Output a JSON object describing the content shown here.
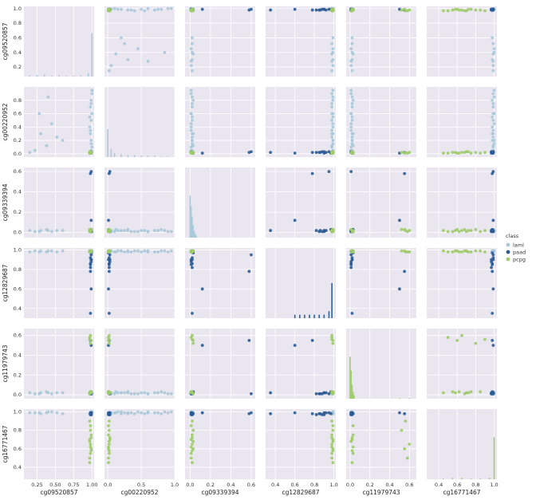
{
  "chart_data": {
    "type": "scatter",
    "subtype": "pairplot",
    "variables": [
      "cg09520857",
      "cg00220952",
      "cg09339394",
      "cg12829687",
      "cg11979743",
      "cg16771467"
    ],
    "legend": {
      "title": "class",
      "placement": "right",
      "entries": [
        {
          "name": "laml",
          "color": "#a8c8d8"
        },
        {
          "name": "paad",
          "color": "#2b5b94"
        },
        {
          "name": "pcpg",
          "color": "#9fca6a"
        }
      ]
    },
    "axes_ranges": {
      "cg09520857": [
        0.07,
        1.03
      ],
      "cg00220952": [
        -0.05,
        1.0
      ],
      "cg09339394": [
        -0.05,
        0.64
      ],
      "cg12829687": [
        0.3,
        1.02
      ],
      "cg11979743": [
        -0.04,
        0.67
      ],
      "cg16771467": [
        0.27,
        1.03
      ]
    },
    "x_ticks": {
      "cg09520857": [
        "0.25",
        "0.50",
        "0.75",
        "1.00"
      ],
      "cg00220952": [
        "0.0",
        "0.5",
        "1.0"
      ],
      "cg09339394": [
        "0.0",
        "0.2",
        "0.4",
        "0.6"
      ],
      "cg12829687": [
        "0.4",
        "0.6",
        "0.8",
        "1.0"
      ],
      "cg11979743": [
        "0.0",
        "0.2",
        "0.4",
        "0.6"
      ],
      "cg16771467": [
        "0.4",
        "0.6",
        "0.8",
        "1.0"
      ]
    },
    "y_ticks": {
      "cg09520857": [
        "0.2",
        "0.4",
        "0.6",
        "0.8",
        "1.0"
      ],
      "cg00220952": [
        "0.0",
        "0.2",
        "0.4",
        "0.6",
        "0.8"
      ],
      "cg09339394": [
        "0.0",
        "0.2",
        "0.4",
        "0.6"
      ],
      "cg12829687": [
        "0.4",
        "0.6",
        "0.8",
        "1.0"
      ],
      "cg11979743": [
        "0.0",
        "0.2",
        "0.4",
        "0.6"
      ],
      "cg16771467": [
        "0.4",
        "0.6",
        "0.8",
        "1.0"
      ]
    },
    "groups": {
      "laml": {
        "cg09520857": [
          0.15,
          0.22,
          0.3,
          0.38,
          0.45,
          0.52,
          0.6,
          0.28,
          0.4,
          0.98,
          0.99,
          1.0,
          0.99,
          0.98,
          0.97,
          0.99,
          1.0,
          0.98,
          0.99,
          1.0,
          0.99,
          0.98,
          0.97,
          0.99,
          1.0
        ],
        "cg00220952": [
          0.02,
          0.05,
          0.3,
          0.12,
          0.45,
          0.25,
          0.2,
          0.6,
          0.85,
          0.02,
          0.05,
          0.1,
          0.2,
          0.3,
          0.4,
          0.5,
          0.6,
          0.7,
          0.8,
          0.9,
          0.15,
          0.35,
          0.55,
          0.75,
          0.95
        ],
        "cg09339394": [
          0.02,
          0.01,
          0.02,
          0.03,
          0.01,
          0.02,
          0.02,
          0.01,
          0.02,
          0.01,
          0.02,
          0.01,
          0.02,
          0.03,
          0.01,
          0.02,
          0.01,
          0.02,
          0.03,
          0.01,
          0.02,
          0.01,
          0.02,
          0.02,
          0.01
        ],
        "cg12829687": [
          0.98,
          0.99,
          0.99,
          0.98,
          0.99,
          0.98,
          0.99,
          0.98,
          0.99,
          0.98,
          0.99,
          0.98,
          0.99,
          0.98,
          0.99,
          0.98,
          0.99,
          0.98,
          0.99,
          0.98,
          0.99,
          0.98,
          0.99,
          0.98,
          0.99
        ],
        "cg11979743": [
          0.02,
          0.01,
          0.02,
          0.03,
          0.01,
          0.02,
          0.02,
          0.01,
          0.02,
          0.01,
          0.02,
          0.01,
          0.02,
          0.03,
          0.01,
          0.02,
          0.01,
          0.02,
          0.03,
          0.01,
          0.02,
          0.01,
          0.02,
          0.02,
          0.01
        ],
        "cg16771467": [
          0.99,
          0.99,
          0.98,
          0.99,
          1.0,
          0.99,
          0.98,
          0.99,
          1.0,
          0.99,
          0.98,
          0.99,
          1.0,
          0.99,
          0.98,
          0.99,
          1.0,
          0.99,
          0.98,
          0.99,
          1.0,
          0.99,
          0.98,
          0.99,
          1.0
        ]
      },
      "paad": {
        "cg09520857": [
          0.98,
          0.99,
          0.99,
          0.98,
          0.99,
          0.98,
          0.99,
          0.98,
          0.99,
          0.98,
          0.99,
          0.98
        ],
        "cg00220952": [
          0.02,
          0.01,
          0.03,
          0.02,
          0.01,
          0.02,
          0.03,
          0.02,
          0.01,
          0.02,
          0.03,
          0.02
        ],
        "cg09339394": [
          0.01,
          0.02,
          0.6,
          0.58,
          0.12,
          0.02,
          0.01,
          0.02,
          0.03,
          0.02,
          0.01,
          0.02
        ],
        "cg12829687": [
          0.85,
          0.9,
          0.95,
          0.78,
          0.6,
          0.35,
          0.88,
          0.92,
          0.97,
          0.82,
          0.9,
          0.86
        ],
        "cg11979743": [
          0.01,
          0.02,
          0.01,
          0.55,
          0.5,
          0.02,
          0.01,
          0.02,
          0.03,
          0.01,
          0.02,
          0.01
        ],
        "cg16771467": [
          0.98,
          0.97,
          0.99,
          0.98,
          0.99,
          0.98,
          0.97,
          0.99,
          0.98,
          0.97,
          0.99,
          0.98
        ]
      },
      "pcpg": {
        "cg09520857": [
          0.97,
          0.98,
          0.99,
          0.98,
          0.97,
          0.99,
          0.98,
          0.97,
          0.99,
          0.98,
          0.97,
          0.99,
          0.98,
          0.97
        ],
        "cg00220952": [
          0.01,
          0.02,
          0.01,
          0.02,
          0.03,
          0.01,
          0.02,
          0.01,
          0.02,
          0.01,
          0.02,
          0.03,
          0.01,
          0.02
        ],
        "cg09339394": [
          0.02,
          0.01,
          0.03,
          0.02,
          0.01,
          0.02,
          0.03,
          0.01,
          0.02,
          0.01,
          0.03,
          0.02,
          0.01,
          0.02
        ],
        "cg12829687": [
          0.99,
          0.98,
          0.99,
          0.98,
          0.99,
          0.98,
          0.99,
          0.98,
          0.99,
          0.98,
          0.99,
          0.98,
          0.99,
          0.98
        ],
        "cg11979743": [
          0.02,
          0.03,
          0.55,
          0.6,
          0.02,
          0.03,
          0.52,
          0.58,
          0.02,
          0.03,
          0.01,
          0.02,
          0.03,
          0.56
        ],
        "cg16771467": [
          0.45,
          0.55,
          0.6,
          0.65,
          0.7,
          0.75,
          0.8,
          0.5,
          0.58,
          0.62,
          0.68,
          0.72,
          0.85,
          0.9
        ]
      }
    },
    "diagonal": {
      "cg09520857": {
        "bins": [
          0.15,
          0.25,
          0.35,
          0.45,
          0.55,
          0.65,
          0.75,
          0.85,
          0.95,
          1.0
        ],
        "heights": [
          0.02,
          0.02,
          0.03,
          0.01,
          0.02,
          0.01,
          0.01,
          0.02,
          0.05,
          0.62
        ]
      },
      "cg00220952": {
        "bins": [
          0.0,
          0.05,
          0.1,
          0.2,
          0.3,
          0.4,
          0.5,
          0.6,
          0.7,
          0.8,
          0.9
        ],
        "heights": [
          0.4,
          0.12,
          0.06,
          0.04,
          0.03,
          0.03,
          0.02,
          0.02,
          0.02,
          0.01,
          0.01
        ]
      },
      "cg09339394": {
        "bins": [
          0.0,
          0.01,
          0.02,
          0.03,
          0.04,
          0.05,
          0.06
        ],
        "heights": [
          0.6,
          0.45,
          0.3,
          0.18,
          0.1,
          0.06,
          0.03
        ]
      },
      "cg12829687": {
        "bins": [
          0.6,
          0.65,
          0.7,
          0.75,
          0.8,
          0.85,
          0.9,
          0.95,
          0.98
        ],
        "heights": [
          0.05,
          0.05,
          0.05,
          0.05,
          0.05,
          0.05,
          0.05,
          0.1,
          0.5
        ]
      },
      "cg11979743": {
        "bins": [
          0.0,
          0.01,
          0.02,
          0.03,
          0.04,
          0.5,
          0.6
        ],
        "heights": [
          0.6,
          0.4,
          0.2,
          0.1,
          0.05,
          0.01,
          0.01
        ]
      },
      "cg16771467": {
        "bins": [
          0.45,
          0.55,
          0.65,
          0.75,
          0.85,
          0.95,
          1.0
        ],
        "heights": [
          0.01,
          0.02,
          0.02,
          0.01,
          0.01,
          0.02,
          0.6
        ]
      }
    },
    "grid": true
  }
}
